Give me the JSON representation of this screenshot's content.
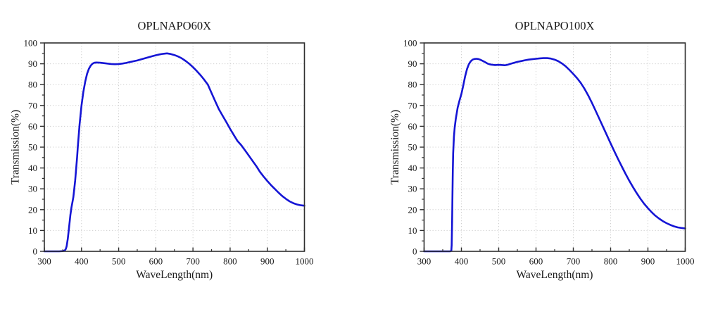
{
  "figure": {
    "background": "#ffffff",
    "description_colors": {
      "curve_blue": "#1515d5",
      "axis": "#2e2e2e",
      "grid": "#cfcfcf",
      "text": "#1a1a1a"
    }
  },
  "chart_data": [
    {
      "type": "line",
      "title": "OPLNAPO60X",
      "xlabel": "WaveLength(nm)",
      "ylabel": "Transmission(%)",
      "xlim": [
        300,
        1000
      ],
      "ylim": [
        0,
        100
      ],
      "xticks": [
        300,
        400,
        500,
        600,
        700,
        800,
        900,
        1000
      ],
      "xtick_labels": [
        "300",
        "400",
        "500",
        "600",
        "700",
        "800",
        "900",
        "1000"
      ],
      "yticks": [
        0,
        10,
        20,
        30,
        40,
        50,
        60,
        70,
        80,
        90,
        100
      ],
      "ytick_labels": [
        "0",
        "10",
        "20",
        "30",
        "40",
        "50",
        "60",
        "70",
        "80",
        "90",
        "100"
      ],
      "x_minor_step": 50,
      "y_minor_step": 5,
      "grid": "dotted-major-both-axes",
      "legend": "none",
      "line_color": "#1515d5",
      "series": [
        {
          "name": "OPLNAPO60X transmission",
          "points": [
            [
              300,
              0
            ],
            [
              320,
              0
            ],
            [
              340,
              0
            ],
            [
              350,
              0.1
            ],
            [
              355,
              0.4
            ],
            [
              358,
              1.2
            ],
            [
              360,
              2.5
            ],
            [
              363,
              6
            ],
            [
              365,
              9
            ],
            [
              368,
              14
            ],
            [
              370,
              17.5
            ],
            [
              373,
              21
            ],
            [
              375,
              23
            ],
            [
              378,
              26
            ],
            [
              380,
              29
            ],
            [
              383,
              34
            ],
            [
              385,
              38.5
            ],
            [
              388,
              45
            ],
            [
              390,
              50
            ],
            [
              395,
              61
            ],
            [
              400,
              70
            ],
            [
              405,
              76.5
            ],
            [
              410,
              81.5
            ],
            [
              415,
              85.2
            ],
            [
              420,
              87.6
            ],
            [
              425,
              89.2
            ],
            [
              430,
              90.1
            ],
            [
              435,
              90.5
            ],
            [
              440,
              90.6
            ],
            [
              450,
              90.5
            ],
            [
              460,
              90.3
            ],
            [
              470,
              90.1
            ],
            [
              480,
              89.9
            ],
            [
              490,
              89.8
            ],
            [
              500,
              89.9
            ],
            [
              510,
              90.1
            ],
            [
              520,
              90.4
            ],
            [
              530,
              90.8
            ],
            [
              540,
              91.2
            ],
            [
              550,
              91.6
            ],
            [
              560,
              92.1
            ],
            [
              570,
              92.6
            ],
            [
              580,
              93.1
            ],
            [
              590,
              93.6
            ],
            [
              600,
              94.1
            ],
            [
              610,
              94.5
            ],
            [
              620,
              94.8
            ],
            [
              630,
              95
            ],
            [
              640,
              94.7
            ],
            [
              650,
              94.2
            ],
            [
              660,
              93.5
            ],
            [
              670,
              92.6
            ],
            [
              680,
              91.4
            ],
            [
              690,
              90
            ],
            [
              700,
              88.4
            ],
            [
              710,
              86.6
            ],
            [
              720,
              84.6
            ],
            [
              730,
              82.4
            ],
            [
              740,
              80
            ],
            [
              750,
              76
            ],
            [
              760,
              72
            ],
            [
              770,
              68.1
            ],
            [
              780,
              65
            ],
            [
              790,
              62
            ],
            [
              800,
              58.8
            ],
            [
              810,
              55.8
            ],
            [
              820,
              52.9
            ],
            [
              830,
              50.9
            ],
            [
              840,
              48.5
            ],
            [
              850,
              46
            ],
            [
              860,
              43.5
            ],
            [
              870,
              41
            ],
            [
              880,
              38.2
            ],
            [
              890,
              35.9
            ],
            [
              900,
              33.8
            ],
            [
              910,
              31.8
            ],
            [
              920,
              30
            ],
            [
              930,
              28.2
            ],
            [
              940,
              26.6
            ],
            [
              950,
              25.2
            ],
            [
              960,
              24
            ],
            [
              970,
              23.1
            ],
            [
              980,
              22.5
            ],
            [
              990,
              22.1
            ],
            [
              1000,
              21.9
            ]
          ]
        }
      ]
    },
    {
      "type": "line",
      "title": "OPLNAPO100X",
      "xlabel": "WaveLength(nm)",
      "ylabel": "Transmission(%)",
      "xlim": [
        300,
        1000
      ],
      "ylim": [
        0,
        100
      ],
      "xticks": [
        300,
        400,
        500,
        600,
        700,
        800,
        900,
        1000
      ],
      "xtick_labels": [
        "300",
        "400",
        "500",
        "600",
        "700",
        "800",
        "900",
        "1000"
      ],
      "yticks": [
        0,
        10,
        20,
        30,
        40,
        50,
        60,
        70,
        80,
        90,
        100
      ],
      "ytick_labels": [
        "0",
        "10",
        "20",
        "30",
        "40",
        "50",
        "60",
        "70",
        "80",
        "90",
        "100"
      ],
      "x_minor_step": 50,
      "y_minor_step": 5,
      "grid": "dotted-major-both-axes",
      "legend": "none",
      "line_color": "#1515d5",
      "series": [
        {
          "name": "OPLNAPO100X transmission",
          "points": [
            [
              300,
              0
            ],
            [
              330,
              0
            ],
            [
              360,
              0
            ],
            [
              370,
              0
            ],
            [
              373,
              0.3
            ],
            [
              374,
              3
            ],
            [
              375,
              14
            ],
            [
              376,
              27
            ],
            [
              377,
              39
            ],
            [
              378,
              47
            ],
            [
              380,
              55
            ],
            [
              382,
              59.5
            ],
            [
              385,
              63.5
            ],
            [
              390,
              69
            ],
            [
              395,
              72.5
            ],
            [
              400,
              75.5
            ],
            [
              405,
              79.5
            ],
            [
              410,
              84
            ],
            [
              415,
              87.5
            ],
            [
              420,
              89.8
            ],
            [
              425,
              91.2
            ],
            [
              430,
              92
            ],
            [
              435,
              92.3
            ],
            [
              440,
              92.4
            ],
            [
              445,
              92.3
            ],
            [
              450,
              92
            ],
            [
              455,
              91.6
            ],
            [
              460,
              91.1
            ],
            [
              465,
              90.6
            ],
            [
              470,
              90.1
            ],
            [
              475,
              89.8
            ],
            [
              480,
              89.6
            ],
            [
              485,
              89.5
            ],
            [
              490,
              89.4
            ],
            [
              500,
              89.5
            ],
            [
              510,
              89.4
            ],
            [
              515,
              89.3
            ],
            [
              520,
              89.4
            ],
            [
              525,
              89.6
            ],
            [
              530,
              89.9
            ],
            [
              540,
              90.4
            ],
            [
              550,
              90.9
            ],
            [
              560,
              91.3
            ],
            [
              570,
              91.7
            ],
            [
              580,
              92
            ],
            [
              590,
              92.2
            ],
            [
              600,
              92.4
            ],
            [
              610,
              92.6
            ],
            [
              620,
              92.7
            ],
            [
              630,
              92.7
            ],
            [
              640,
              92.5
            ],
            [
              650,
              92
            ],
            [
              660,
              91.2
            ],
            [
              670,
              90.1
            ],
            [
              680,
              88.7
            ],
            [
              690,
              87
            ],
            [
              700,
              85.1
            ],
            [
              710,
              83.1
            ],
            [
              720,
              80.8
            ],
            [
              730,
              78
            ],
            [
              740,
              74.8
            ],
            [
              750,
              71.2
            ],
            [
              760,
              67.4
            ],
            [
              770,
              63.5
            ],
            [
              780,
              59.6
            ],
            [
              790,
              55.7
            ],
            [
              800,
              51.8
            ],
            [
              810,
              48
            ],
            [
              820,
              44.3
            ],
            [
              830,
              40.7
            ],
            [
              840,
              37.2
            ],
            [
              850,
              33.9
            ],
            [
              860,
              30.8
            ],
            [
              870,
              27.9
            ],
            [
              880,
              25.2
            ],
            [
              890,
              22.8
            ],
            [
              900,
              20.7
            ],
            [
              910,
              18.8
            ],
            [
              920,
              17.1
            ],
            [
              930,
              15.7
            ],
            [
              940,
              14.5
            ],
            [
              950,
              13.5
            ],
            [
              960,
              12.7
            ],
            [
              970,
              12
            ],
            [
              980,
              11.5
            ],
            [
              990,
              11.2
            ],
            [
              1000,
              11
            ]
          ]
        }
      ]
    }
  ]
}
